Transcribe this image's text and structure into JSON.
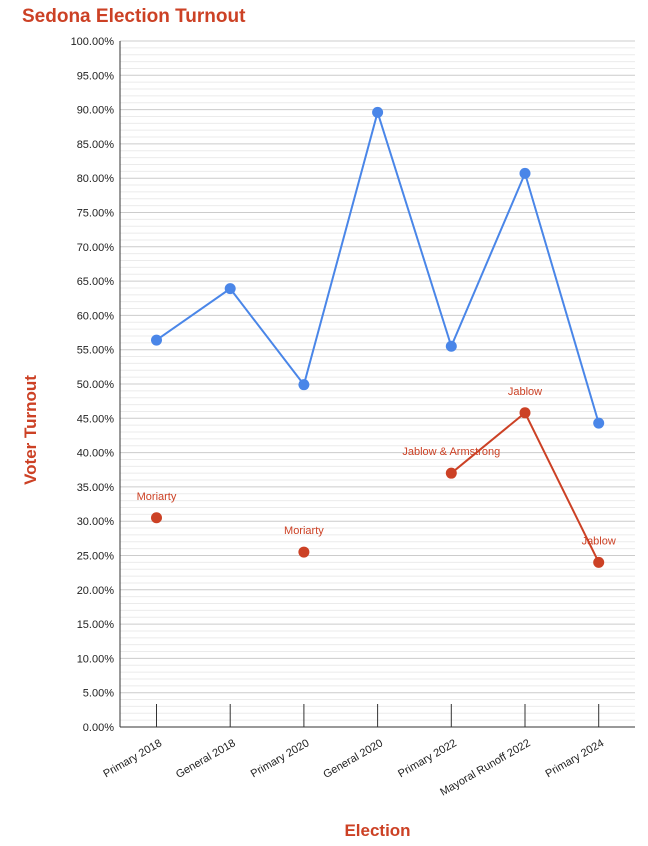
{
  "chart_data": {
    "type": "line",
    "title": "Sedona Election Turnout",
    "xlabel": "Election",
    "ylabel": "Voter Turnout",
    "categories": [
      "Primary 2018",
      "General 2018",
      "Primary 2020",
      "General 2020",
      "Primary 2022",
      "Mayoral Runoff 2022",
      "Primary 2024"
    ],
    "ylim": [
      0,
      100
    ],
    "yticks": [
      "0.00%",
      "5.00%",
      "10.00%",
      "15.00%",
      "20.00%",
      "25.00%",
      "30.00%",
      "35.00%",
      "40.00%",
      "45.00%",
      "50.00%",
      "55.00%",
      "60.00%",
      "65.00%",
      "70.00%",
      "75.00%",
      "80.00%",
      "85.00%",
      "90.00%",
      "95.00%",
      "100.00%"
    ],
    "grid": true,
    "legend": "none",
    "series": [
      {
        "color": "#4a86e8",
        "values": [
          56.4,
          63.9,
          49.9,
          89.6,
          55.5,
          80.7,
          44.3
        ],
        "labels": [
          "",
          "",
          "",
          "",
          "",
          "",
          ""
        ]
      },
      {
        "color": "#cc4125",
        "values": [
          30.5,
          null,
          25.5,
          null,
          37.0,
          45.8,
          24.0
        ],
        "labels": [
          "Moriarty",
          "",
          "Moriarty",
          "",
          "Jablow & Armstrong",
          "Jablow",
          "Jablow"
        ]
      }
    ]
  }
}
